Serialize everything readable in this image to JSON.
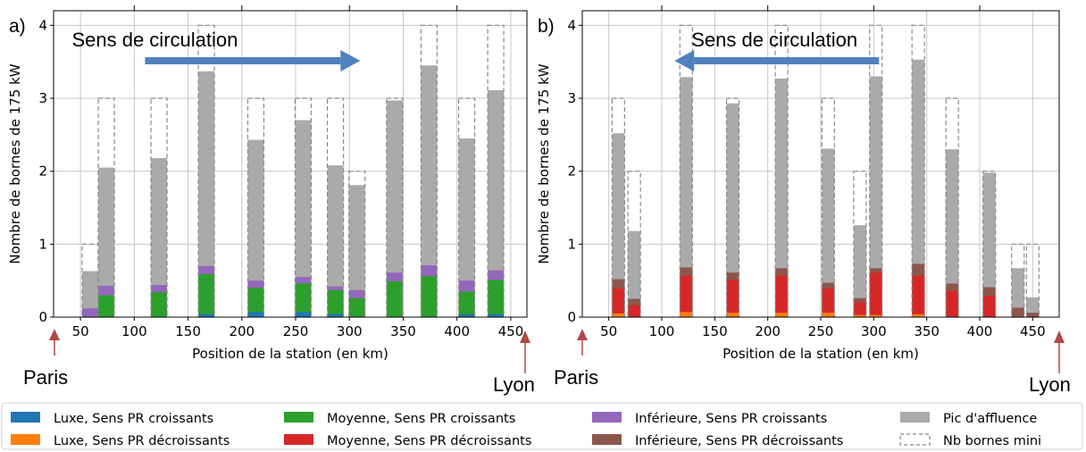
{
  "panels": [
    {
      "letter": "a)",
      "arrow_text": "Sens de circulation",
      "arrow_direction": "right",
      "origin_label": "Paris",
      "end_label": "Lyon",
      "xlabel": "Position de la station (en km)",
      "ylabel": "Nombre de bornes de 175 kW"
    },
    {
      "letter": "b)",
      "arrow_text": "Sens de circulation",
      "arrow_direction": "left",
      "origin_label": "Paris",
      "end_label": "Lyon",
      "xlabel": "Position de la station (en km)",
      "ylabel": "Nombre de bornes de 175 kW"
    }
  ],
  "legend": [
    {
      "label": "Luxe, Sens PR croissants",
      "color": "#1f77b4",
      "kind": "fill"
    },
    {
      "label": "Moyenne, Sens PR croissants",
      "color": "#2ca02c",
      "kind": "fill"
    },
    {
      "label": "Inférieure, Sens PR croissants",
      "color": "#9467bd",
      "kind": "fill"
    },
    {
      "label": "Pic d'affluence",
      "color": "#aaaaaa",
      "kind": "fill"
    },
    {
      "label": "Luxe, Sens PR décroissants",
      "color": "#ff7f0e",
      "kind": "fill"
    },
    {
      "label": "Moyenne, Sens PR décroissants",
      "color": "#d62728",
      "kind": "fill"
    },
    {
      "label": "Inférieure, Sens PR décroissants",
      "color": "#8c564b",
      "kind": "fill"
    },
    {
      "label": "Nb bornes mini",
      "color": "#888888",
      "kind": "dashed"
    }
  ],
  "chart_data": [
    {
      "type": "bar",
      "stacked": true,
      "xlim": [
        25,
        465
      ],
      "ylim": [
        0,
        4.2
      ],
      "xticks": [
        50,
        100,
        150,
        200,
        250,
        300,
        350,
        400,
        450
      ],
      "yticks": [
        0,
        1,
        2,
        3,
        4
      ],
      "grid": true,
      "stations": [
        {
          "x": 59,
          "luxe": 0.0,
          "moyenne": 0.0,
          "inferieure": 0.12,
          "pic": 0.63,
          "mini": 1
        },
        {
          "x": 74,
          "luxe": 0.0,
          "moyenne": 0.3,
          "inferieure": 0.43,
          "pic": 2.05,
          "mini": 3
        },
        {
          "x": 123,
          "luxe": 0.0,
          "moyenne": 0.34,
          "inferieure": 0.44,
          "pic": 2.18,
          "mini": 3
        },
        {
          "x": 167,
          "luxe": 0.04,
          "moyenne": 0.59,
          "inferieure": 0.7,
          "pic": 3.37,
          "mini": 4
        },
        {
          "x": 213,
          "luxe": 0.07,
          "moyenne": 0.4,
          "inferieure": 0.5,
          "pic": 2.43,
          "mini": 3
        },
        {
          "x": 257,
          "luxe": 0.07,
          "moyenne": 0.46,
          "inferieure": 0.55,
          "pic": 2.7,
          "mini": 3
        },
        {
          "x": 287,
          "luxe": 0.04,
          "moyenne": 0.37,
          "inferieure": 0.42,
          "pic": 2.08,
          "mini": 3
        },
        {
          "x": 307,
          "luxe": 0.0,
          "moyenne": 0.26,
          "inferieure": 0.37,
          "pic": 1.81,
          "mini": 2
        },
        {
          "x": 342,
          "luxe": 0.0,
          "moyenne": 0.49,
          "inferieure": 0.61,
          "pic": 2.97,
          "mini": 3
        },
        {
          "x": 374,
          "luxe": 0.0,
          "moyenne": 0.56,
          "inferieure": 0.71,
          "pic": 3.45,
          "mini": 4
        },
        {
          "x": 409,
          "luxe": 0.04,
          "moyenne": 0.35,
          "inferieure": 0.5,
          "pic": 2.45,
          "mini": 3
        },
        {
          "x": 436,
          "luxe": 0.04,
          "moyenne": 0.51,
          "inferieure": 0.64,
          "pic": 3.11,
          "mini": 4
        }
      ]
    },
    {
      "type": "bar",
      "stacked": true,
      "xlim": [
        25,
        475
      ],
      "ylim": [
        0,
        4.2
      ],
      "xticks": [
        50,
        100,
        150,
        200,
        250,
        300,
        350,
        400,
        450
      ],
      "yticks": [
        0,
        1,
        2,
        3,
        4
      ],
      "grid": true,
      "stations": [
        {
          "x": 59,
          "luxe": 0.05,
          "moyenne": 0.39,
          "inferieure": 0.52,
          "pic": 2.52,
          "mini": 3
        },
        {
          "x": 74,
          "luxe": 0.0,
          "moyenne": 0.16,
          "inferieure": 0.25,
          "pic": 1.18,
          "mini": 2
        },
        {
          "x": 123,
          "luxe": 0.07,
          "moyenne": 0.57,
          "inferieure": 0.68,
          "pic": 3.29,
          "mini": 4
        },
        {
          "x": 167,
          "luxe": 0.06,
          "moyenne": 0.51,
          "inferieure": 0.61,
          "pic": 2.93,
          "mini": 3
        },
        {
          "x": 213,
          "luxe": 0.06,
          "moyenne": 0.57,
          "inferieure": 0.67,
          "pic": 3.27,
          "mini": 4
        },
        {
          "x": 257,
          "luxe": 0.06,
          "moyenne": 0.39,
          "inferieure": 0.47,
          "pic": 2.31,
          "mini": 3
        },
        {
          "x": 287,
          "luxe": 0.03,
          "moyenne": 0.2,
          "inferieure": 0.26,
          "pic": 1.26,
          "mini": 2
        },
        {
          "x": 302,
          "luxe": 0.03,
          "moyenne": 0.61,
          "inferieure": 0.67,
          "pic": 3.3,
          "mini": 4
        },
        {
          "x": 342,
          "luxe": 0.04,
          "moyenne": 0.57,
          "inferieure": 0.73,
          "pic": 3.53,
          "mini": 4
        },
        {
          "x": 374,
          "luxe": 0.0,
          "moyenne": 0.36,
          "inferieure": 0.46,
          "pic": 2.3,
          "mini": 3
        },
        {
          "x": 409,
          "luxe": 0.0,
          "moyenne": 0.29,
          "inferieure": 0.41,
          "pic": 1.98,
          "mini": 2
        },
        {
          "x": 436,
          "luxe": 0.0,
          "moyenne": 0.0,
          "inferieure": 0.13,
          "pic": 0.67,
          "mini": 1
        },
        {
          "x": 450,
          "luxe": 0.0,
          "moyenne": 0.0,
          "inferieure": 0.06,
          "pic": 0.27,
          "mini": 1
        }
      ]
    }
  ]
}
